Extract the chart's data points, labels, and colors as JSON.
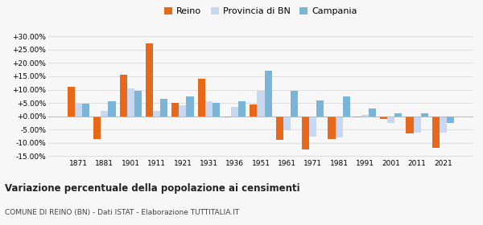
{
  "years": [
    1871,
    1881,
    1901,
    1911,
    1921,
    1931,
    1936,
    1951,
    1961,
    1971,
    1981,
    1991,
    2001,
    2011,
    2021
  ],
  "reino": [
    11.0,
    -8.5,
    15.5,
    27.5,
    5.0,
    14.0,
    -0.5,
    4.5,
    -9.0,
    -12.5,
    -8.5,
    -0.5,
    -1.0,
    -6.5,
    -12.0
  ],
  "provincia": [
    4.8,
    2.0,
    10.5,
    2.0,
    4.2,
    5.5,
    3.5,
    9.5,
    -5.2,
    -7.5,
    -8.0,
    0.5,
    -2.5,
    -6.0,
    -6.0
  ],
  "campania": [
    4.8,
    5.5,
    9.5,
    6.5,
    7.5,
    5.0,
    5.5,
    17.0,
    9.5,
    6.0,
    7.5,
    3.0,
    1.0,
    1.0,
    -2.5
  ],
  "color_reino": "#e8681a",
  "color_provincia": "#c9d8f0",
  "color_campania": "#7ab5d8",
  "title": "Variazione percentuale della popolazione ai censimenti",
  "subtitle": "COMUNE DI REINO (BN) - Dati ISTAT - Elaborazione TUTTITALIA.IT",
  "ylim_min": -15,
  "ylim_max": 30,
  "yticks": [
    -15,
    -10,
    -5,
    0,
    5,
    10,
    15,
    20,
    25,
    30
  ],
  "background_color": "#f7f7f7",
  "grid_color": "#e0e0e0",
  "legend_labels": [
    "Reino",
    "Provincia di BN",
    "Campania"
  ],
  "bar_width": 0.28
}
